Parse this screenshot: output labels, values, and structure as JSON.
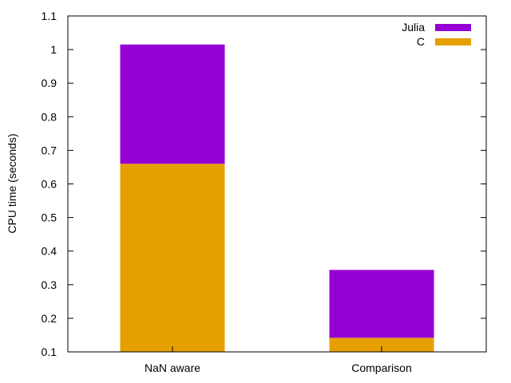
{
  "chart_data": {
    "type": "bar",
    "stacked": true,
    "categories": [
      "NaN aware",
      "Comparison"
    ],
    "series": [
      {
        "name": "C",
        "color": "#e69f00",
        "values": [
          0.66,
          0.142
        ]
      },
      {
        "name": "Julia",
        "color": "#9400d3",
        "values": [
          0.355,
          0.202
        ]
      }
    ],
    "legend_order": [
      "Julia",
      "C"
    ],
    "ylabel": "CPU time (seconds)",
    "xlabel": "",
    "title": "",
    "ylim": [
      0.1,
      1.1
    ],
    "yticks": [
      "0.1",
      "0.2",
      "0.3",
      "0.4",
      "0.5",
      "0.6",
      "0.7",
      "0.8",
      "0.9",
      "1",
      "1.1"
    ],
    "ytick_values": [
      0.1,
      0.2,
      0.3,
      0.4,
      0.5,
      0.6,
      0.7,
      0.8,
      0.9,
      1.0,
      1.1
    ],
    "grid": false,
    "legend_position": "top-right"
  }
}
